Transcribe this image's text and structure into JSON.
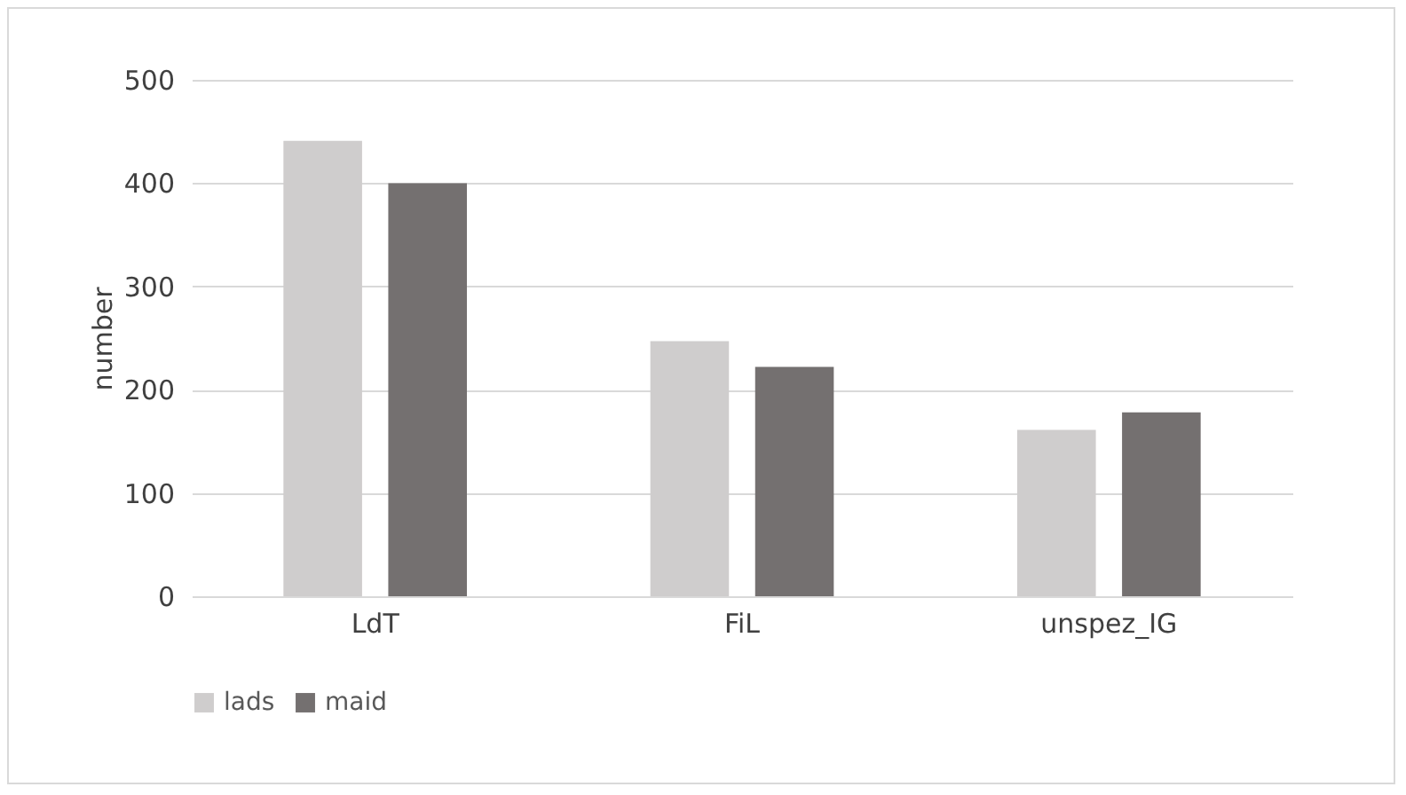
{
  "chart_data": {
    "type": "bar",
    "ylabel": "number",
    "categories": [
      "LdT",
      "FiL",
      "unspez_IG"
    ],
    "series": [
      {
        "name": "lads",
        "color": "#cfcdcd",
        "values": [
          441,
          247,
          161
        ]
      },
      {
        "name": "maid",
        "color": "#747070",
        "values": [
          400,
          222,
          178
        ]
      }
    ],
    "ylim": [
      0,
      500
    ],
    "yticks": [
      0,
      100,
      200,
      300,
      400,
      500
    ],
    "grid": "y",
    "legend": "bottom"
  }
}
